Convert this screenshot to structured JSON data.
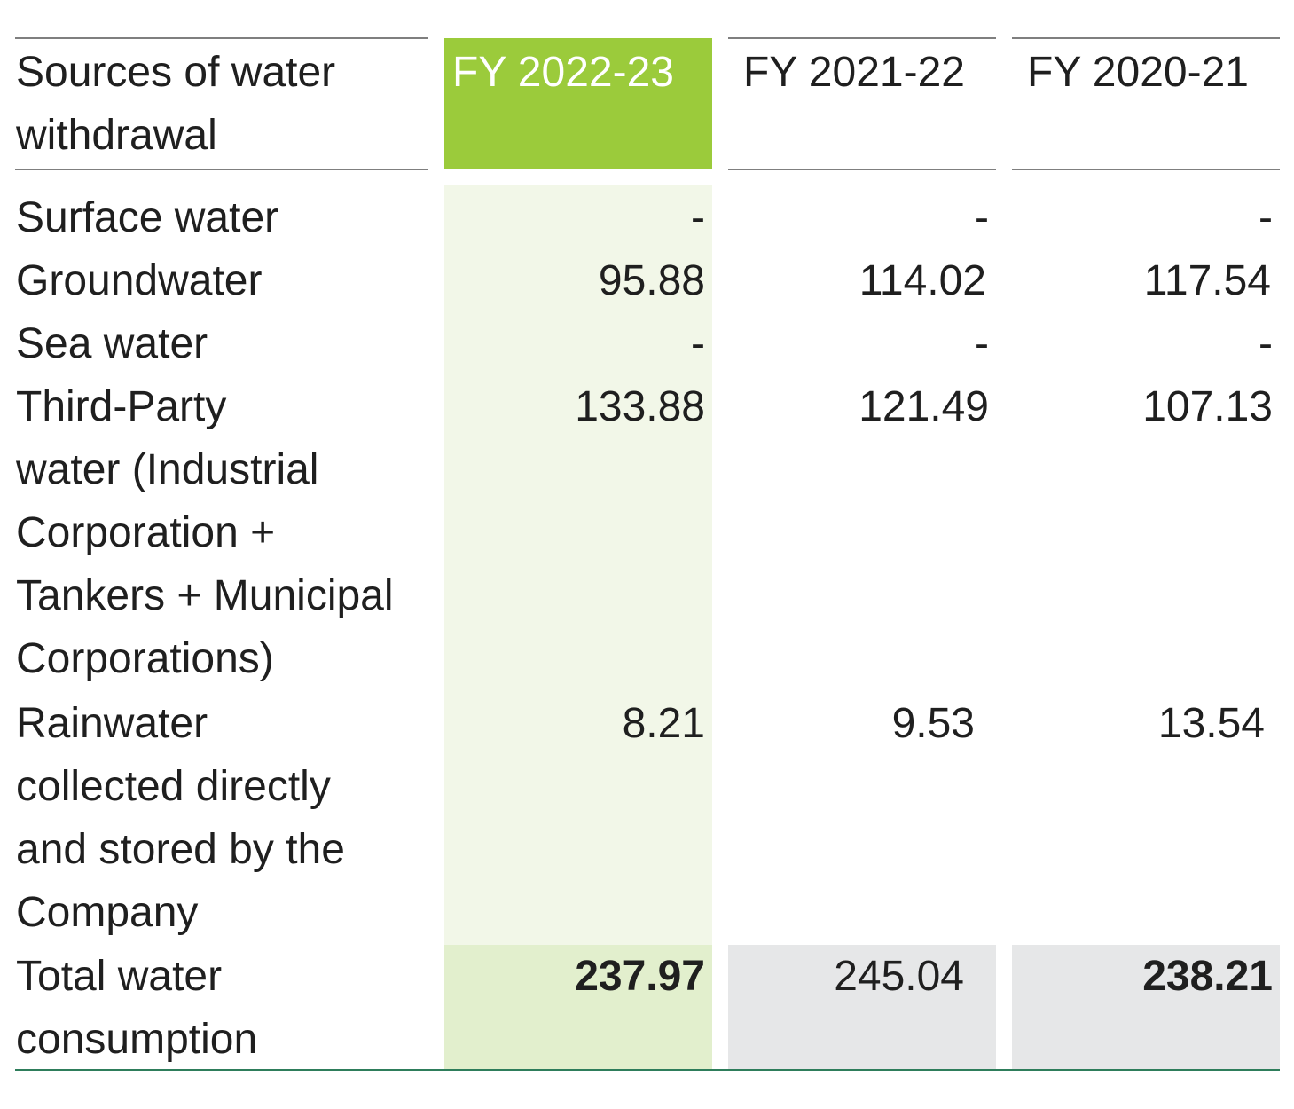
{
  "header": {
    "label": "Sources of water\nwithdrawal",
    "years": [
      "FY 2022-23",
      "FY 2021-22",
      "FY 2020-21"
    ]
  },
  "rows": [
    {
      "label": "Surface water",
      "values": [
        "-",
        "-",
        "-"
      ]
    },
    {
      "label": "Groundwater",
      "values": [
        "95.88",
        "114.02",
        "117.54"
      ]
    },
    {
      "label": "Sea water",
      "values": [
        "-",
        "-",
        "-"
      ]
    },
    {
      "label": "Third-Party\nwater (Industrial\nCorporation +\nTankers + Municipal\nCorporations)",
      "values": [
        "133.88",
        "121.49",
        "107.13"
      ]
    },
    {
      "label": "Rainwater\ncollected directly\nand stored by the\nCompany",
      "values": [
        "8.21",
        "9.53",
        "13.54"
      ]
    }
  ],
  "total": {
    "label": "Total water\nconsumption",
    "values": [
      "237.97",
      "245.04",
      "238.21"
    ]
  },
  "colors": {
    "highlight_header": "#9bcb3b",
    "highlight_column": "#f2f7e8",
    "highlight_total": "#e2efcd",
    "total_gray": "#e6e7e8",
    "rule": "#7f7f7f",
    "bottom_rule": "#2e7d5b"
  }
}
